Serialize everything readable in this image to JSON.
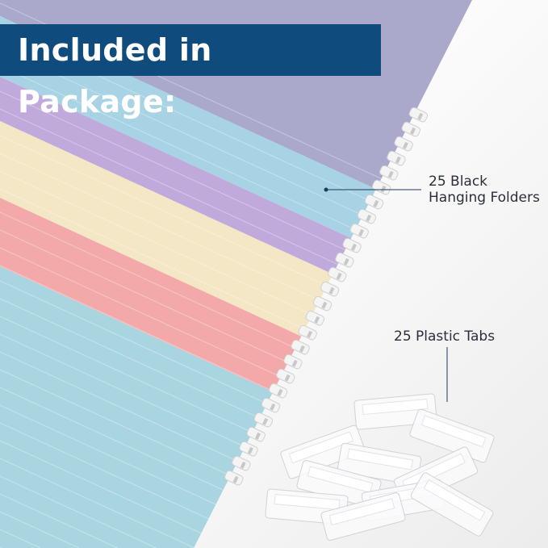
{
  "banner": {
    "title": "Included in Package:",
    "background_color": "#0f4c7d"
  },
  "callouts": {
    "folders": {
      "line1": "25 Black",
      "line2": "Hanging Folders"
    },
    "tabs": {
      "label": "25 Plastic Tabs"
    }
  },
  "folder_colors": [
    "#aaa9cb",
    "#a7d3e4",
    "#c0aadb",
    "#f3e7c6",
    "#f3a9a9",
    "#a9d5e0"
  ]
}
